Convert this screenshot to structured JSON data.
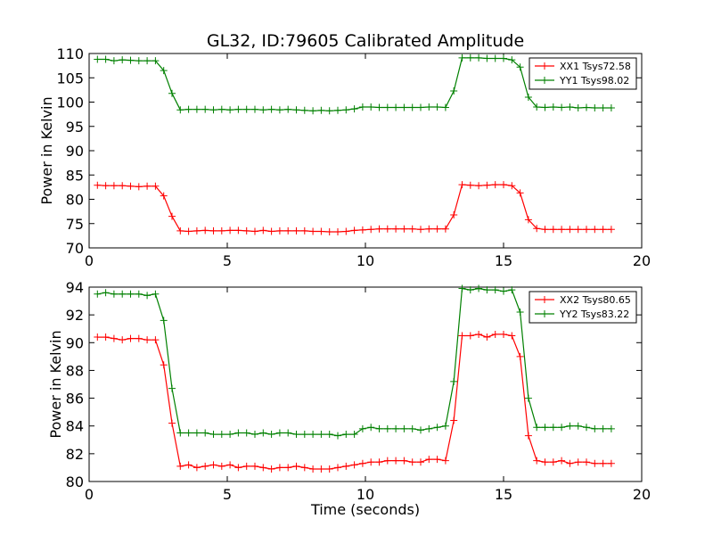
{
  "chart_data": [
    {
      "type": "line",
      "title": "GL32, ID:79605 Calibrated Amplitude",
      "xlabel": "",
      "ylabel": "Power in Kelvin",
      "xlim": [
        0,
        20
      ],
      "ylim": [
        70,
        110
      ],
      "xticks": [
        0,
        5,
        10,
        15,
        20
      ],
      "yticks": [
        70,
        75,
        80,
        85,
        90,
        95,
        100,
        105,
        110
      ],
      "legend_position": "top-right",
      "grid": false,
      "x": [
        0.3,
        0.6,
        0.9,
        1.2,
        1.5,
        1.8,
        2.1,
        2.4,
        2.7,
        3.0,
        3.3,
        3.6,
        3.9,
        4.2,
        4.5,
        4.8,
        5.1,
        5.4,
        5.7,
        6.0,
        6.3,
        6.6,
        6.9,
        7.2,
        7.5,
        7.8,
        8.1,
        8.4,
        8.7,
        9.0,
        9.3,
        9.6,
        9.9,
        10.2,
        10.5,
        10.8,
        11.1,
        11.4,
        11.7,
        12.0,
        12.3,
        12.6,
        12.9,
        13.2,
        13.5,
        13.8,
        14.1,
        14.4,
        14.7,
        15.0,
        15.3,
        15.6,
        15.9,
        16.2,
        16.5,
        16.8,
        17.1,
        17.4,
        17.7,
        18.0,
        18.3,
        18.6,
        18.9
      ],
      "series": [
        {
          "name": "XX1 Tsys72.58",
          "color": "#ff0000",
          "values": [
            82.9,
            82.8,
            82.8,
            82.8,
            82.7,
            82.6,
            82.7,
            82.7,
            80.7,
            76.5,
            73.5,
            73.4,
            73.5,
            73.6,
            73.5,
            73.5,
            73.6,
            73.6,
            73.5,
            73.4,
            73.6,
            73.4,
            73.5,
            73.5,
            73.5,
            73.5,
            73.4,
            73.4,
            73.3,
            73.3,
            73.4,
            73.6,
            73.7,
            73.8,
            73.9,
            73.9,
            73.9,
            73.9,
            73.9,
            73.8,
            73.9,
            73.9,
            73.9,
            76.8,
            83.0,
            82.9,
            82.8,
            82.9,
            83.0,
            83.0,
            82.8,
            81.3,
            75.8,
            74.0,
            73.8,
            73.8,
            73.8,
            73.8,
            73.8,
            73.8,
            73.8,
            73.8,
            73.8
          ]
        },
        {
          "name": "YY1 Tsys98.02",
          "color": "#008000",
          "values": [
            108.8,
            108.8,
            108.5,
            108.7,
            108.6,
            108.5,
            108.5,
            108.5,
            106.5,
            101.8,
            98.4,
            98.5,
            98.5,
            98.5,
            98.4,
            98.5,
            98.4,
            98.5,
            98.5,
            98.5,
            98.4,
            98.5,
            98.4,
            98.5,
            98.4,
            98.3,
            98.2,
            98.3,
            98.2,
            98.3,
            98.4,
            98.6,
            99.0,
            99.0,
            98.9,
            98.9,
            98.9,
            98.9,
            98.9,
            98.9,
            99.0,
            99.0,
            98.9,
            102.3,
            109.1,
            109.1,
            109.1,
            109.0,
            109.0,
            109.0,
            108.7,
            107.2,
            101.0,
            99.0,
            98.9,
            99.0,
            98.9,
            99.0,
            98.8,
            98.9,
            98.8,
            98.8,
            98.8
          ]
        }
      ]
    },
    {
      "type": "line",
      "title": "",
      "xlabel": "Time (seconds)",
      "ylabel": "Power in Kelvin",
      "xlim": [
        0,
        20
      ],
      "ylim": [
        80,
        94
      ],
      "xticks": [
        0,
        5,
        10,
        15,
        20
      ],
      "yticks": [
        80,
        82,
        84,
        86,
        88,
        90,
        92,
        94
      ],
      "legend_position": "top-right",
      "grid": false,
      "x": [
        0.3,
        0.6,
        0.9,
        1.2,
        1.5,
        1.8,
        2.1,
        2.4,
        2.7,
        3.0,
        3.3,
        3.6,
        3.9,
        4.2,
        4.5,
        4.8,
        5.1,
        5.4,
        5.7,
        6.0,
        6.3,
        6.6,
        6.9,
        7.2,
        7.5,
        7.8,
        8.1,
        8.4,
        8.7,
        9.0,
        9.3,
        9.6,
        9.9,
        10.2,
        10.5,
        10.8,
        11.1,
        11.4,
        11.7,
        12.0,
        12.3,
        12.6,
        12.9,
        13.2,
        13.5,
        13.8,
        14.1,
        14.4,
        14.7,
        15.0,
        15.3,
        15.6,
        15.9,
        16.2,
        16.5,
        16.8,
        17.1,
        17.4,
        17.7,
        18.0,
        18.3,
        18.6,
        18.9
      ],
      "series": [
        {
          "name": "XX2 Tsys80.65",
          "color": "#ff0000",
          "values": [
            90.4,
            90.4,
            90.3,
            90.2,
            90.3,
            90.3,
            90.2,
            90.2,
            88.4,
            84.2,
            81.1,
            81.2,
            81.0,
            81.1,
            81.2,
            81.1,
            81.2,
            81.0,
            81.1,
            81.1,
            81.0,
            80.9,
            81.0,
            81.0,
            81.1,
            81.0,
            80.9,
            80.9,
            80.9,
            81.0,
            81.1,
            81.2,
            81.3,
            81.4,
            81.4,
            81.5,
            81.5,
            81.5,
            81.4,
            81.4,
            81.6,
            81.6,
            81.5,
            84.4,
            90.5,
            90.5,
            90.6,
            90.4,
            90.6,
            90.6,
            90.5,
            89.0,
            83.3,
            81.5,
            81.4,
            81.4,
            81.5,
            81.3,
            81.4,
            81.4,
            81.3,
            81.3,
            81.3
          ]
        },
        {
          "name": "YY2 Tsys83.22",
          "color": "#008000",
          "values": [
            93.5,
            93.6,
            93.5,
            93.5,
            93.5,
            93.5,
            93.4,
            93.5,
            91.6,
            86.7,
            83.5,
            83.5,
            83.5,
            83.5,
            83.4,
            83.4,
            83.4,
            83.5,
            83.5,
            83.4,
            83.5,
            83.4,
            83.5,
            83.5,
            83.4,
            83.4,
            83.4,
            83.4,
            83.4,
            83.3,
            83.4,
            83.4,
            83.8,
            83.9,
            83.8,
            83.8,
            83.8,
            83.8,
            83.8,
            83.7,
            83.8,
            83.9,
            84.0,
            87.2,
            93.9,
            93.8,
            93.9,
            93.8,
            93.8,
            93.7,
            93.8,
            92.2,
            86.0,
            83.9,
            83.9,
            83.9,
            83.9,
            84.0,
            84.0,
            83.9,
            83.8,
            83.8,
            83.8
          ]
        }
      ]
    }
  ]
}
